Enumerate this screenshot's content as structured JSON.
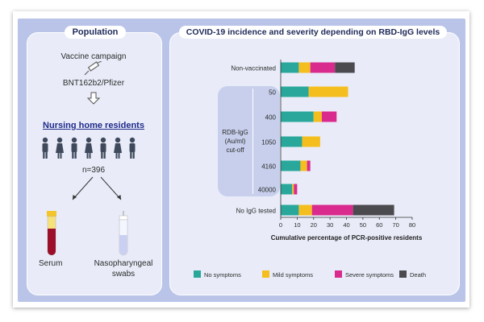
{
  "left_panel": {
    "title": "Population",
    "vaccine_campaign": "Vaccine campaign",
    "vaccine_name": "BNT162b2/Pfizer",
    "population_heading": "Nursing home residents",
    "n_label": "n=396",
    "serum_label": "Serum",
    "swab_label_line1": "Nasopharyngeal",
    "swab_label_line2": "swabs",
    "icons": [
      "syringe-icon",
      "arrow-down-icon",
      "person-icon",
      "blood-tube-icon",
      "swab-tube-icon"
    ]
  },
  "right_panel": {
    "title": "COVID-19 incidence and severity depending on RBD-IgG levels",
    "group_label_line1": "RDB-IgG",
    "group_label_line2": "(Au/ml)",
    "group_label_line3": "cut-off"
  },
  "chart_data": {
    "type": "bar",
    "orientation": "horizontal",
    "stacked": true,
    "categories": [
      "Non-vaccinated",
      "50",
      "400",
      "1050",
      "4160",
      "40000",
      "No IgG tested"
    ],
    "series": [
      {
        "name": "No symptoms",
        "color": "#2aa79b",
        "values": [
          11,
          17,
          20,
          13,
          12,
          7,
          11
        ]
      },
      {
        "name": "Mild symptoms",
        "color": "#f5be1f",
        "values": [
          7,
          24,
          5,
          11,
          4,
          1,
          8
        ]
      },
      {
        "name": "Severe symptoms",
        "color": "#d92b8e",
        "values": [
          15,
          0,
          9,
          0,
          2,
          2,
          25
        ]
      },
      {
        "name": "Death",
        "color": "#4a4a4f",
        "values": [
          12,
          0,
          0,
          0,
          0,
          0,
          25
        ]
      }
    ],
    "xlim": [
      0,
      80
    ],
    "xticks": [
      0,
      10,
      20,
      30,
      40,
      50,
      60,
      70,
      80
    ],
    "xlabel": "Cumulative percentage of PCR-positive residents",
    "legend_placement": "bottom"
  }
}
